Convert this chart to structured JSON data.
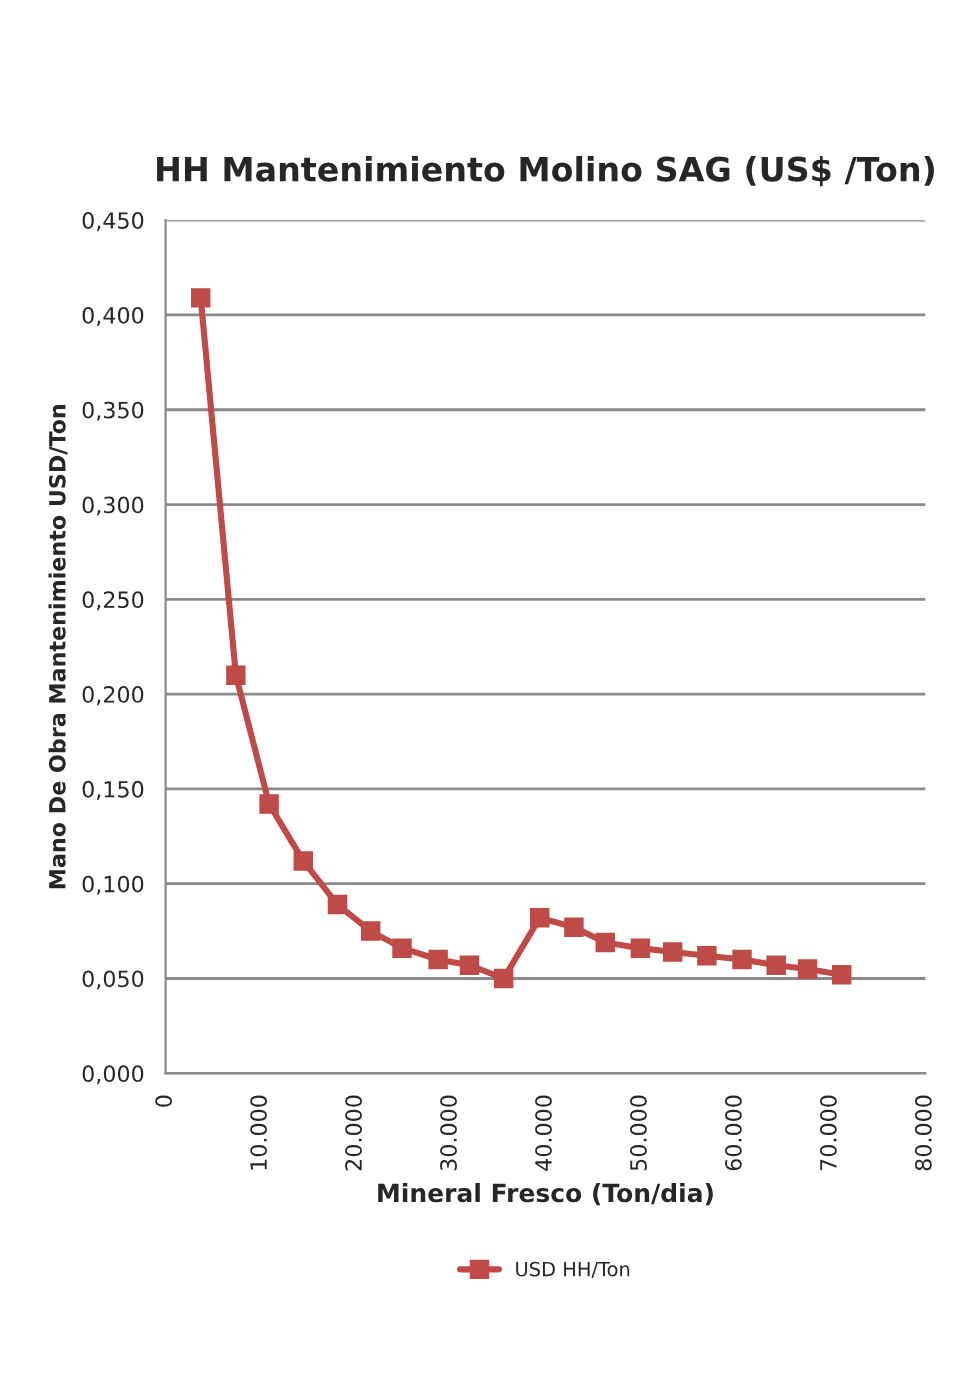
{
  "chart_data": {
    "type": "line",
    "title": "HH Mantenimiento Molino SAG (US$ /Ton)",
    "xlabel": "Mineral Fresco (Ton/dia)",
    "ylabel": "Mano De Obra Mantenimiento USD/Ton",
    "x": [
      3700,
      7400,
      10900,
      14500,
      18100,
      21600,
      24900,
      28700,
      32000,
      35600,
      39400,
      43000,
      46300,
      50000,
      53400,
      57000,
      60700,
      64300,
      67600,
      71200
    ],
    "series": [
      {
        "name": "USD HH/Ton",
        "color": "#be4b48",
        "values": [
          0.409,
          0.21,
          0.142,
          0.112,
          0.089,
          0.075,
          0.066,
          0.06,
          0.057,
          0.05,
          0.082,
          0.077,
          0.069,
          0.066,
          0.064,
          0.062,
          0.06,
          0.057,
          0.055,
          0.052
        ]
      }
    ],
    "xlim": [
      0,
      80000
    ],
    "xticks": [
      {
        "value": 0,
        "label": "0"
      },
      {
        "value": 10000,
        "label": "10.000"
      },
      {
        "value": 20000,
        "label": "20.000"
      },
      {
        "value": 30000,
        "label": "30.000"
      },
      {
        "value": 40000,
        "label": "40.000"
      },
      {
        "value": 50000,
        "label": "50.000"
      },
      {
        "value": 60000,
        "label": "60.000"
      },
      {
        "value": 70000,
        "label": "70.000"
      },
      {
        "value": 80000,
        "label": "80.000"
      }
    ],
    "ylim": [
      0,
      0.45
    ],
    "yticks": [
      {
        "value": 0,
        "label": "0,000"
      },
      {
        "value": 0.05,
        "label": "0,050"
      },
      {
        "value": 0.1,
        "label": "0,100"
      },
      {
        "value": 0.15,
        "label": "0,150"
      },
      {
        "value": 0.2,
        "label": "0,200"
      },
      {
        "value": 0.25,
        "label": "0,250"
      },
      {
        "value": 0.3,
        "label": "0,300"
      },
      {
        "value": 0.35,
        "label": "0,350"
      },
      {
        "value": 0.4,
        "label": "0,400"
      },
      {
        "value": 0.45,
        "label": "0,450"
      }
    ],
    "grid": "y",
    "legend": "bottom",
    "marker": "square",
    "line_style": "solid"
  }
}
